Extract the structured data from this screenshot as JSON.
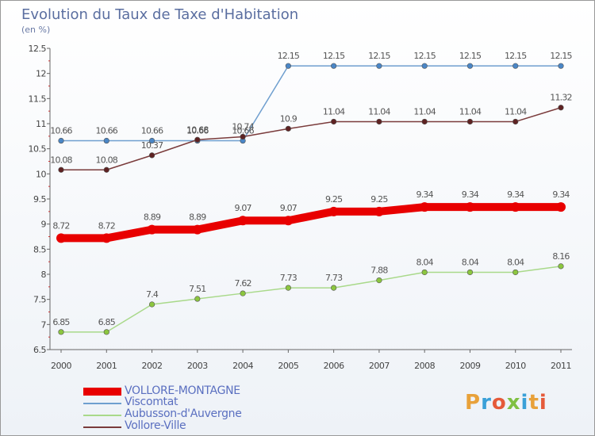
{
  "title": "Evolution du Taux de Taxe d'Habitation",
  "subtitle": "(en %)",
  "brand": {
    "text": "Proxiti",
    "colors": [
      "#e8a13a",
      "#3aa0d8",
      "#e55a3a",
      "#7fc043",
      "#3aa0d8",
      "#e8a13a",
      "#e55a3a"
    ]
  },
  "chart_data": {
    "type": "line",
    "x": [
      "2000",
      "2001",
      "2002",
      "2003",
      "2004",
      "2005",
      "2006",
      "2007",
      "2008",
      "2009",
      "2010",
      "2011"
    ],
    "ylim": [
      6.5,
      12.5
    ],
    "yticks": [
      "6.5",
      "7",
      "7.5",
      "8",
      "8.5",
      "9",
      "9.5",
      "10",
      "10.5",
      "11",
      "11.5",
      "12",
      "12.5"
    ],
    "grid": false,
    "legend_position": "bottom-left",
    "series": [
      {
        "name": "Viscomtat",
        "color": "#6f9fcf",
        "marker": "#4a86c6",
        "width": 1.5,
        "values": [
          10.66,
          10.66,
          10.66,
          10.66,
          10.66,
          12.15,
          12.15,
          12.15,
          12.15,
          12.15,
          12.15,
          12.15
        ],
        "labels": [
          "10.66",
          "10.66",
          "10.66",
          "10.66",
          "10.66",
          "12.15",
          "12.15",
          "12.15",
          "12.15",
          "12.15",
          "12.15",
          "12.15"
        ]
      },
      {
        "name": "Vollore-Ville",
        "color": "#7a3b3b",
        "marker": "#5e2222",
        "width": 1.5,
        "values": [
          10.08,
          10.08,
          10.37,
          10.68,
          10.74,
          10.9,
          11.04,
          11.04,
          11.04,
          11.04,
          11.04,
          11.32
        ],
        "labels": [
          "10.08",
          "10.08",
          "10.37",
          "10.68",
          "10.74",
          "10.9",
          "11.04",
          "11.04",
          "11.04",
          "11.04",
          "11.04",
          "11.32"
        ]
      },
      {
        "name": "VOLLORE-MONTAGNE",
        "color": "#e80000",
        "marker": "#e80000",
        "width": 10,
        "values": [
          8.72,
          8.72,
          8.89,
          8.89,
          9.07,
          9.07,
          9.25,
          9.25,
          9.34,
          9.34,
          9.34,
          9.34
        ],
        "labels": [
          "8.72",
          "8.72",
          "8.89",
          "8.89",
          "9.07",
          "9.07",
          "9.25",
          "9.25",
          "9.34",
          "9.34",
          "9.34",
          "9.34"
        ]
      },
      {
        "name": "Aubusson-d'Auvergne",
        "color": "#a9d98a",
        "marker": "#8cc63f",
        "width": 1.5,
        "values": [
          6.85,
          6.85,
          7.4,
          7.51,
          7.62,
          7.73,
          7.73,
          7.88,
          8.04,
          8.04,
          8.04,
          8.16
        ],
        "labels": [
          "6.85",
          "6.85",
          "7.4",
          "7.51",
          "7.62",
          "7.73",
          "7.73",
          "7.88",
          "8.04",
          "8.04",
          "8.04",
          "8.16"
        ]
      }
    ],
    "legend": [
      {
        "name": "VOLLORE-MONTAGNE",
        "color": "#e80000",
        "thick": true
      },
      {
        "name": "Viscomtat",
        "color": "#6f9fcf",
        "thick": false
      },
      {
        "name": "Aubusson-d'Auvergne",
        "color": "#a9d98a",
        "thick": false
      },
      {
        "name": "Vollore-Ville",
        "color": "#7a3b3b",
        "thick": false
      }
    ]
  }
}
